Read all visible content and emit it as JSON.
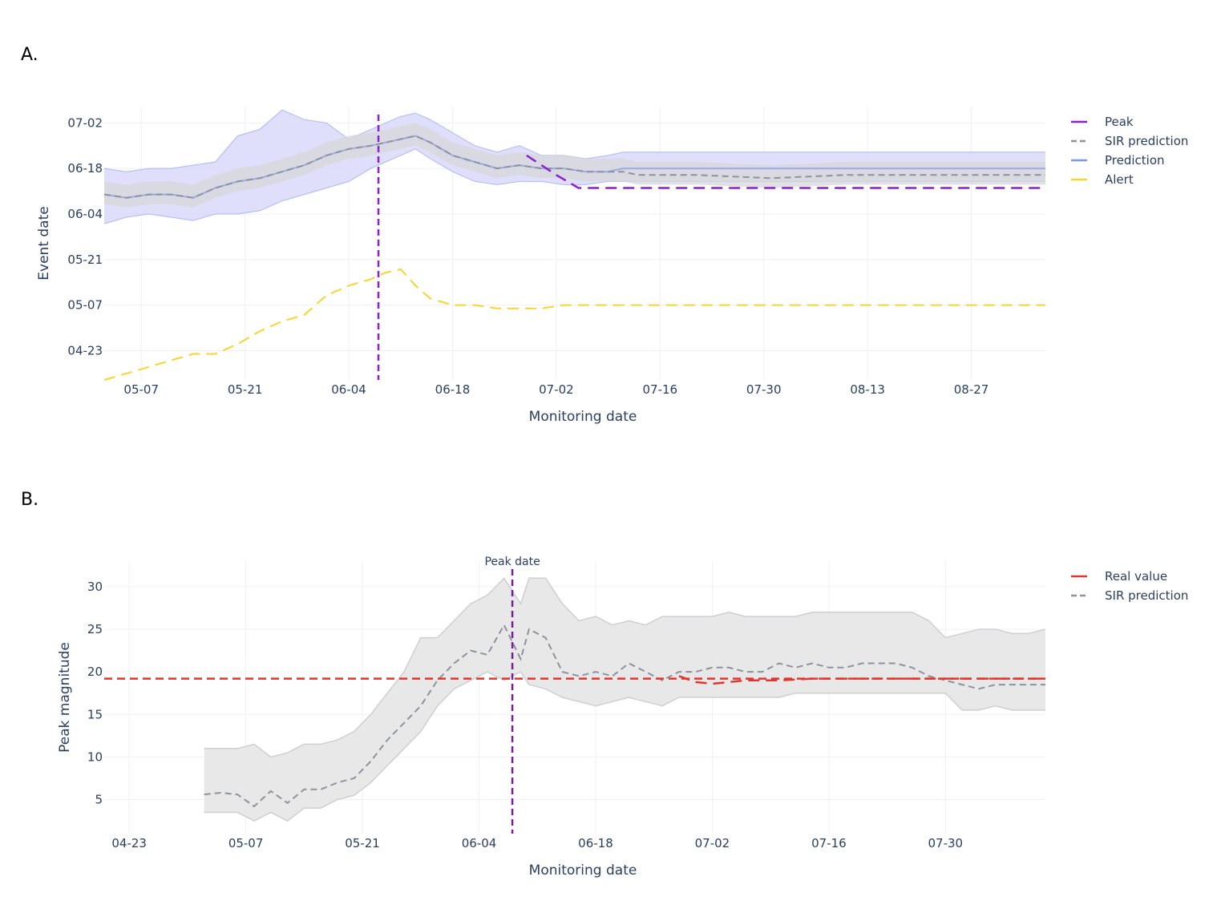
{
  "panels": [
    {
      "label": "A."
    },
    {
      "label": "B."
    }
  ],
  "chart_data": [
    {
      "type": "line",
      "panel": "A.",
      "xlabel": "Monitoring date",
      "ylabel": "Event date",
      "x_ticks": [
        "05-07",
        "05-21",
        "06-04",
        "06-18",
        "07-02",
        "07-16",
        "07-30",
        "08-13",
        "08-27"
      ],
      "y_ticks": [
        "04-23",
        "05-07",
        "05-21",
        "06-04",
        "06-18",
        "07-02"
      ],
      "x_unit": "days since 05-02",
      "y_unit": "days since 04-23",
      "xlim": [
        0,
        127
      ],
      "ylim": [
        -9,
        75
      ],
      "peak_line_x": 37,
      "legend": [
        "Peak",
        "SIR prediction",
        "Prediction",
        "Alert"
      ],
      "colors": {
        "peak": "#8b1fd6",
        "sir": "#8d929c",
        "prediction": "#7d98ec",
        "alert": "#f5d531",
        "pred_band": "#dcdcfb",
        "sir_band": "#d7d7da"
      },
      "series": [
        {
          "name": "Prediction",
          "x": [
            0,
            3,
            6,
            9,
            12,
            15,
            18,
            21,
            24,
            27,
            30,
            33,
            36,
            38,
            40,
            42,
            44,
            47,
            50,
            53,
            56,
            59,
            62,
            65,
            68,
            70,
            72,
            75,
            80,
            90,
            100,
            110,
            120,
            127
          ],
          "y": [
            48,
            47,
            48,
            48,
            47,
            50,
            52,
            53,
            55,
            57,
            60,
            62,
            63,
            64,
            65,
            66,
            64,
            60,
            58,
            56,
            57,
            56,
            56,
            55,
            55,
            56,
            56,
            56,
            56,
            56,
            56,
            56,
            56,
            56
          ]
        },
        {
          "name": "Prediction upper",
          "x": [
            0,
            3,
            6,
            9,
            12,
            15,
            18,
            21,
            24,
            27,
            30,
            33,
            36,
            38,
            40,
            42,
            44,
            47,
            50,
            53,
            56,
            59,
            62,
            65,
            68,
            70,
            72,
            75,
            80,
            90,
            100,
            110,
            120,
            127
          ],
          "y": [
            56,
            55,
            56,
            56,
            57,
            58,
            66,
            68,
            74,
            71,
            70,
            65,
            68,
            70,
            72,
            73,
            71,
            67,
            63,
            61,
            63,
            60,
            60,
            59,
            60,
            61,
            61,
            61,
            61,
            61,
            61,
            61,
            61,
            61
          ]
        },
        {
          "name": "Prediction lower",
          "x": [
            0,
            3,
            6,
            9,
            12,
            15,
            18,
            21,
            24,
            27,
            30,
            33,
            36,
            38,
            40,
            42,
            44,
            47,
            50,
            53,
            56,
            59,
            62,
            65,
            68,
            70,
            72,
            75,
            80,
            90,
            100,
            110,
            120,
            127
          ],
          "y": [
            39,
            41,
            42,
            41,
            40,
            42,
            42,
            43,
            46,
            48,
            50,
            52,
            56,
            58,
            60,
            62,
            59,
            55,
            52,
            51,
            52,
            52,
            51,
            51,
            52,
            52,
            52,
            52,
            52,
            52,
            52,
            52,
            52,
            52
          ]
        },
        {
          "name": "SIR prediction",
          "x": [
            0,
            3,
            6,
            9,
            12,
            15,
            18,
            21,
            24,
            27,
            30,
            33,
            36,
            38,
            40,
            42,
            44,
            47,
            50,
            53,
            56,
            59,
            62,
            65,
            68,
            70,
            72,
            75,
            80,
            90,
            100,
            110,
            120,
            127
          ],
          "y": [
            48,
            47,
            48,
            48,
            47,
            50,
            52,
            53,
            55,
            57,
            60,
            62,
            63,
            64,
            65,
            66,
            64,
            60,
            58,
            56,
            57,
            56,
            56,
            55,
            55,
            55,
            54,
            54,
            54,
            53,
            54,
            54,
            54,
            54
          ]
        },
        {
          "name": "Peak",
          "x": [
            57,
            61,
            64,
            67,
            70,
            75,
            80,
            90,
            100,
            110,
            120,
            127
          ],
          "y": [
            60,
            54,
            50,
            50,
            50,
            50,
            50,
            50,
            50,
            50,
            50,
            50
          ]
        },
        {
          "name": "Alert",
          "x": [
            0,
            3,
            6,
            9,
            12,
            15,
            18,
            21,
            24,
            27,
            30,
            33,
            36,
            38,
            40,
            42,
            44,
            47,
            50,
            53,
            56,
            59,
            62,
            65,
            68,
            70,
            72,
            75,
            80,
            90,
            100,
            110,
            120,
            127
          ],
          "y": [
            -9,
            -7,
            -5,
            -3,
            -1,
            -1,
            2,
            6,
            9,
            11,
            17,
            20,
            22,
            24,
            25,
            20,
            16,
            14,
            14,
            13,
            13,
            13,
            14,
            14,
            14,
            14,
            14,
            14,
            14,
            14,
            14,
            14,
            14,
            14
          ]
        }
      ]
    },
    {
      "type": "line",
      "panel": "B.",
      "xlabel": "Monitoring date",
      "ylabel": "Peak magnitude",
      "x_ticks": [
        "04-23",
        "05-07",
        "05-21",
        "06-04",
        "06-18",
        "07-02",
        "07-16",
        "07-30"
      ],
      "y_ticks": [
        5,
        10,
        15,
        20,
        25,
        30
      ],
      "x_unit": "days since 04-23",
      "xlim": [
        -3,
        110
      ],
      "ylim": [
        1,
        33
      ],
      "peak_line_x": 46,
      "peak_line_label": "Peak date",
      "real_value": 19.2,
      "legend": [
        "Real value",
        "SIR prediction"
      ],
      "colors": {
        "real": "#e0362f",
        "sir": "#8d929c",
        "peak": "#7a1d9a",
        "band": "#e8e8e8",
        "band_edge": "#cfcfd3"
      },
      "series": [
        {
          "name": "SIR prediction",
          "x": [
            9,
            11,
            13,
            15,
            17,
            19,
            21,
            23,
            25,
            27,
            29,
            31,
            33,
            35,
            37,
            39,
            41,
            43,
            45,
            47,
            48,
            50,
            52,
            54,
            56,
            58,
            60,
            62,
            64,
            66,
            68,
            70,
            72,
            74,
            76,
            78,
            80,
            82,
            84,
            86,
            88,
            90,
            92,
            94,
            96,
            98,
            100,
            102,
            104,
            106,
            108,
            110
          ],
          "y": [
            5.6,
            5.8,
            5.6,
            4.2,
            6.0,
            4.6,
            6.2,
            6.2,
            7.0,
            7.5,
            9.5,
            12,
            14,
            16,
            19,
            21,
            22.5,
            22,
            25.5,
            21.5,
            25,
            24,
            20,
            19.5,
            20,
            19.5,
            21,
            20,
            19,
            20,
            20,
            20.5,
            20.5,
            20,
            20,
            21,
            20.5,
            21,
            20.5,
            20.5,
            21,
            21,
            21,
            20.5,
            19.5,
            19,
            18.5,
            18,
            18.5,
            18.5,
            18.5,
            18.5
          ]
        },
        {
          "name": "SIR upper",
          "x": [
            9,
            11,
            13,
            15,
            17,
            19,
            21,
            23,
            25,
            27,
            29,
            31,
            33,
            35,
            37,
            39,
            41,
            43,
            45,
            47,
            48,
            50,
            52,
            54,
            56,
            58,
            60,
            62,
            64,
            66,
            68,
            70,
            72,
            74,
            76,
            78,
            80,
            82,
            84,
            86,
            88,
            90,
            92,
            94,
            96,
            98,
            100,
            102,
            104,
            106,
            108,
            110
          ],
          "y": [
            11,
            11,
            11,
            11.5,
            10,
            10.5,
            11.5,
            11.5,
            12,
            13,
            15,
            17.5,
            20,
            24,
            24,
            26,
            28,
            29,
            31,
            28,
            31,
            31,
            28,
            26,
            26.5,
            25.5,
            26,
            25.5,
            26.5,
            26.5,
            26.5,
            26.5,
            27,
            26.5,
            26.5,
            26.5,
            26.5,
            27,
            27,
            27,
            27,
            27,
            27,
            27,
            26,
            24,
            24.5,
            25,
            25,
            24.5,
            24.5,
            25
          ]
        },
        {
          "name": "SIR lower",
          "x": [
            9,
            11,
            13,
            15,
            17,
            19,
            21,
            23,
            25,
            27,
            29,
            31,
            33,
            35,
            37,
            39,
            41,
            43,
            45,
            47,
            48,
            50,
            52,
            54,
            56,
            58,
            60,
            62,
            64,
            66,
            68,
            70,
            72,
            74,
            76,
            78,
            80,
            82,
            84,
            86,
            88,
            90,
            92,
            94,
            96,
            98,
            100,
            102,
            104,
            106,
            108,
            110
          ],
          "y": [
            3.5,
            3.5,
            3.5,
            2.5,
            3.5,
            2.5,
            4.0,
            4.0,
            5.0,
            5.5,
            7.0,
            9.0,
            11,
            13,
            16,
            18,
            19,
            20,
            19,
            20,
            18.5,
            18,
            17,
            16.5,
            16,
            16.5,
            17,
            16.5,
            16,
            17,
            17,
            17,
            17,
            17,
            17,
            17,
            17.5,
            17.5,
            17.5,
            17.5,
            17.5,
            17.5,
            17.5,
            17.5,
            17.5,
            17.5,
            15.5,
            15.5,
            16,
            15.5,
            15.5,
            15.5
          ]
        },
        {
          "name": "Real value",
          "x": [
            66,
            68,
            70,
            72,
            74,
            76,
            78,
            80,
            82,
            84,
            86,
            88,
            90,
            92,
            94,
            96,
            98,
            100,
            102,
            104,
            106,
            108,
            110
          ],
          "y": [
            19.5,
            18.8,
            18.6,
            18.8,
            19.0,
            19.0,
            19.0,
            19.1,
            19.2,
            19.2,
            19.2,
            19.2,
            19.2,
            19.2,
            19.2,
            19.2,
            19.2,
            19.2,
            19.2,
            19.2,
            19.2,
            19.2,
            19.2
          ]
        }
      ]
    }
  ]
}
